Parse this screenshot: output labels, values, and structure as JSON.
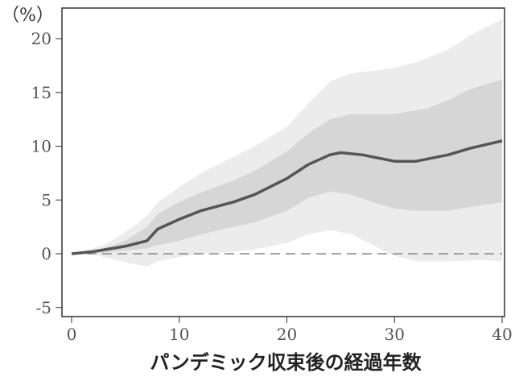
{
  "chart_data": {
    "type": "area",
    "title": "",
    "ylabel": "（%）",
    "xlabel": "パンデミック収束後の経過年数",
    "xlim": [
      0,
      40
    ],
    "ylim": [
      -5.8,
      22.5
    ],
    "xticks": [
      0,
      10,
      20,
      30,
      40
    ],
    "yticks": [
      -5,
      0,
      5,
      10,
      15,
      20
    ],
    "grid": false,
    "reference_line": 0,
    "colors": {
      "mean": "#555555",
      "inner": "#d6d6d6",
      "outer": "#ececec",
      "zero": "#888888"
    },
    "series": [
      {
        "name": "mean",
        "x": [
          0,
          2,
          5,
          7,
          8,
          10,
          12,
          15,
          17,
          20,
          22,
          24,
          25,
          27,
          30,
          32,
          35,
          37,
          40
        ],
        "values": [
          0,
          0.2,
          0.7,
          1.2,
          2.3,
          3.2,
          4.0,
          4.8,
          5.5,
          7.0,
          8.3,
          9.2,
          9.4,
          9.2,
          8.6,
          8.6,
          9.2,
          9.8,
          10.5
        ]
      },
      {
        "name": "inner_upper",
        "x": [
          0,
          3,
          5,
          7,
          8,
          10,
          12,
          15,
          17,
          20,
          22,
          24,
          26,
          30,
          33,
          35,
          37,
          40
        ],
        "values": [
          0,
          0.5,
          1.2,
          2.5,
          3.7,
          4.8,
          5.7,
          6.8,
          7.7,
          9.5,
          11.2,
          12.5,
          13.0,
          13.0,
          13.5,
          14.3,
          15.3,
          16.2
        ]
      },
      {
        "name": "inner_lower",
        "x": [
          0,
          3,
          5,
          7,
          8,
          10,
          12,
          15,
          17,
          20,
          22,
          24,
          26,
          28,
          30,
          32,
          35,
          38,
          40
        ],
        "values": [
          0,
          0.1,
          0.3,
          0.5,
          0.8,
          1.2,
          1.8,
          2.5,
          2.9,
          4.0,
          5.2,
          5.8,
          5.5,
          4.8,
          4.2,
          4.0,
          4.0,
          4.5,
          4.8
        ]
      },
      {
        "name": "outer_upper",
        "x": [
          0,
          3,
          5,
          7,
          8,
          10,
          12,
          15,
          17,
          20,
          22,
          24,
          26,
          28,
          30,
          32,
          35,
          37,
          40
        ],
        "values": [
          0,
          0.8,
          2.0,
          3.5,
          4.8,
          6.2,
          7.5,
          9.0,
          10.0,
          11.8,
          14.0,
          16.0,
          16.8,
          17.0,
          17.3,
          17.8,
          19.0,
          20.3,
          21.8
        ]
      },
      {
        "name": "outer_lower",
        "x": [
          0,
          2,
          3,
          5,
          7,
          8,
          10,
          12,
          15,
          17,
          20,
          22,
          24,
          26,
          28,
          30,
          32,
          35,
          38,
          40
        ],
        "values": [
          0,
          0,
          -0.3,
          -0.8,
          -1.2,
          -0.7,
          -0.3,
          0,
          0.2,
          0.4,
          1.0,
          1.8,
          2.2,
          1.8,
          0.8,
          -0.2,
          -0.7,
          -0.7,
          -0.6,
          -0.7
        ]
      }
    ]
  }
}
